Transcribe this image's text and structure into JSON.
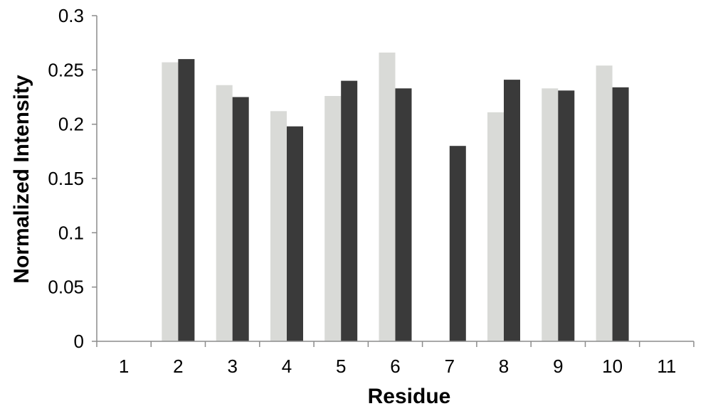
{
  "chart_data": {
    "type": "bar",
    "title": "",
    "xlabel": "Residue",
    "ylabel": "Normalized Intensity",
    "categories": [
      "1",
      "2",
      "3",
      "4",
      "5",
      "6",
      "7",
      "8",
      "9",
      "10",
      "11"
    ],
    "ylim": [
      0,
      0.3
    ],
    "yticks": [
      "0",
      "0.05",
      "0.1",
      "0.15",
      "0.2",
      "0.25",
      "0.3"
    ],
    "grid": false,
    "legend": "none",
    "series": [
      {
        "color": "#d9dad7",
        "values": [
          null,
          0.257,
          0.236,
          0.212,
          0.226,
          0.266,
          null,
          0.211,
          0.233,
          0.254,
          null
        ]
      },
      {
        "color": "#3a3a3a",
        "values": [
          null,
          0.26,
          0.225,
          0.198,
          0.24,
          0.233,
          0.18,
          0.241,
          0.231,
          0.234,
          null
        ]
      }
    ]
  }
}
